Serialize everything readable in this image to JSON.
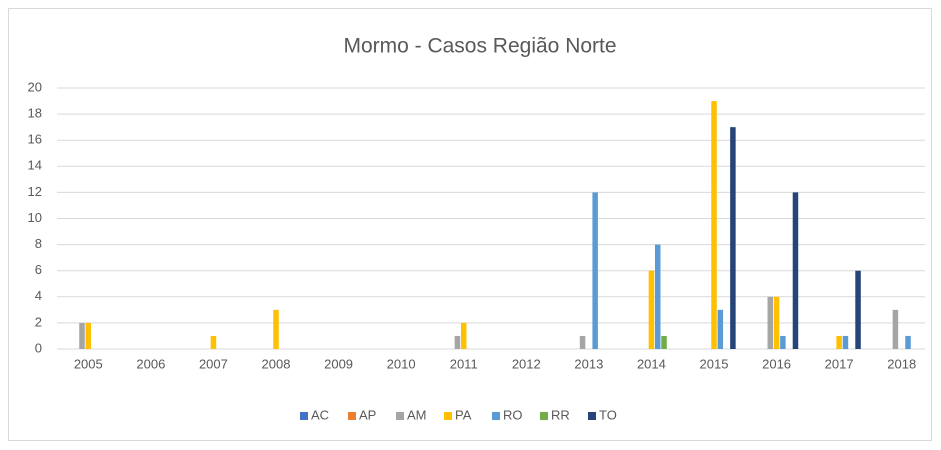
{
  "chart_data": {
    "type": "bar",
    "title": "Mormo - Casos Região Norte",
    "categories": [
      "2005",
      "2006",
      "2007",
      "2008",
      "2009",
      "2010",
      "2011",
      "2012",
      "2013",
      "2014",
      "2015",
      "2016",
      "2017",
      "2018"
    ],
    "series": [
      {
        "name": "AC",
        "color": "#4472c4",
        "values": [
          0,
          0,
          0,
          0,
          0,
          0,
          0,
          0,
          0,
          0,
          0,
          0,
          0,
          0
        ]
      },
      {
        "name": "AP",
        "color": "#ed7d31",
        "values": [
          0,
          0,
          0,
          0,
          0,
          0,
          0,
          0,
          0,
          0,
          0,
          0,
          0,
          0
        ]
      },
      {
        "name": "AM",
        "color": "#a5a5a5",
        "values": [
          2,
          0,
          0,
          0,
          0,
          0,
          1,
          0,
          1,
          0,
          0,
          4,
          0,
          3
        ]
      },
      {
        "name": "PA",
        "color": "#ffc000",
        "values": [
          2,
          0,
          1,
          3,
          0,
          0,
          2,
          0,
          0,
          6,
          19,
          4,
          1,
          0
        ]
      },
      {
        "name": "RO",
        "color": "#5b9bd5",
        "values": [
          0,
          0,
          0,
          0,
          0,
          0,
          0,
          0,
          12,
          8,
          3,
          1,
          1,
          1
        ]
      },
      {
        "name": "RR",
        "color": "#70ad47",
        "values": [
          0,
          0,
          0,
          0,
          0,
          0,
          0,
          0,
          0,
          1,
          0,
          0,
          0,
          0
        ]
      },
      {
        "name": "TO",
        "color": "#264478",
        "values": [
          0,
          0,
          0,
          0,
          0,
          0,
          0,
          0,
          0,
          0,
          17,
          12,
          6,
          0
        ]
      }
    ],
    "ylim": [
      0,
      20
    ],
    "yticks": [
      0,
      2,
      4,
      6,
      8,
      10,
      12,
      14,
      16,
      18,
      20
    ],
    "grid": true,
    "legend": "bottom"
  }
}
